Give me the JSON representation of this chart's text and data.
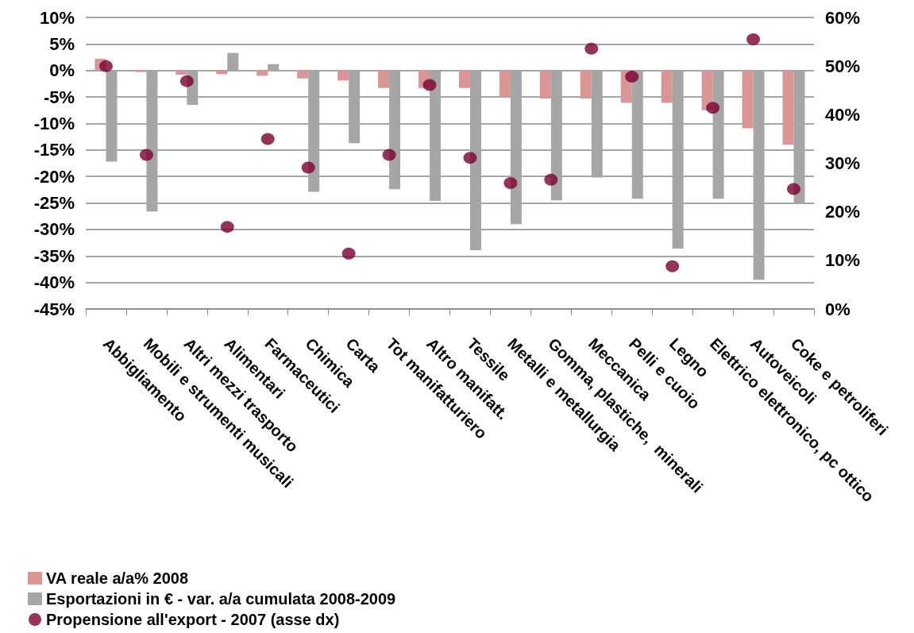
{
  "chart_data": {
    "type": "bar",
    "categories": [
      "Abbigliamento",
      "Mobili e strumenti musicali",
      "Altri mezzi trasporto",
      "Alimentari",
      "Farmaceutici",
      "Chimica",
      "Carta",
      "Tot manifatturiero",
      "Altro manifatt.",
      "Tessile",
      "Metalli e metallurgia",
      "Gomma, plastiche,  minerali",
      "Meccanica",
      "Pelli e cuoio",
      "Legno",
      "Elettrico elettronico, pc ottico",
      "Autoveicoli",
      "Coke e petroliferi"
    ],
    "series": [
      {
        "name": "VA reale a/a% 2008",
        "color": "#d99694",
        "values": [
          2.2,
          -0.3,
          -0.8,
          -0.7,
          -1.0,
          -1.5,
          -1.9,
          -3.3,
          -3.3,
          -3.3,
          -5.0,
          -5.3,
          -5.3,
          -6.1,
          -6.1,
          -7.5,
          -10.9,
          -14.0
        ]
      },
      {
        "name": "Esportazioni in € - var. a/a cumulata 2008-2009",
        "color": "#a6a6a6",
        "values": [
          -17.2,
          -26.6,
          -6.5,
          3.3,
          1.2,
          -22.9,
          -13.7,
          -22.4,
          -24.6,
          -33.9,
          -29.0,
          -24.5,
          -20.2,
          -24.2,
          -33.6,
          -24.2,
          -39.5,
          -25.1
        ]
      },
      {
        "name": "Propensione all'export - 2007 (asse dx)",
        "type": "scatter",
        "axis": "y2",
        "color": "#7b0032",
        "values": [
          50,
          31.7,
          46.9,
          16.9,
          35.0,
          29.1,
          11.4,
          31.7,
          46.1,
          31.1,
          25.9,
          26.6,
          53.6,
          47.8,
          8.8,
          41.4,
          55.5,
          24.7
        ]
      }
    ],
    "ylim": [
      -45,
      10
    ],
    "yticks": [
      {
        "value": -45,
        "label": "-45%"
      },
      {
        "value": -40,
        "label": "-40%"
      },
      {
        "value": -35,
        "label": "-35%"
      },
      {
        "value": -30,
        "label": "-30%"
      },
      {
        "value": -25,
        "label": "-25%"
      },
      {
        "value": -20,
        "label": "-20%"
      },
      {
        "value": -15,
        "label": "-15%"
      },
      {
        "value": -10,
        "label": "-10%"
      },
      {
        "value": -5,
        "label": "-5%"
      },
      {
        "value": 0,
        "label": "0%"
      },
      {
        "value": 5,
        "label": "5%"
      },
      {
        "value": 10,
        "label": "10%"
      }
    ],
    "y2lim": [
      0,
      60
    ],
    "y2ticks": [
      {
        "value": 0,
        "label": "0%"
      },
      {
        "value": 10,
        "label": "10%"
      },
      {
        "value": 20,
        "label": "20%"
      },
      {
        "value": 30,
        "label": "30%"
      },
      {
        "value": 40,
        "label": "40%"
      },
      {
        "value": 50,
        "label": "50%"
      },
      {
        "value": 60,
        "label": "60%"
      }
    ],
    "grid": "y",
    "legend": "bottom left",
    "marker": "circle"
  }
}
